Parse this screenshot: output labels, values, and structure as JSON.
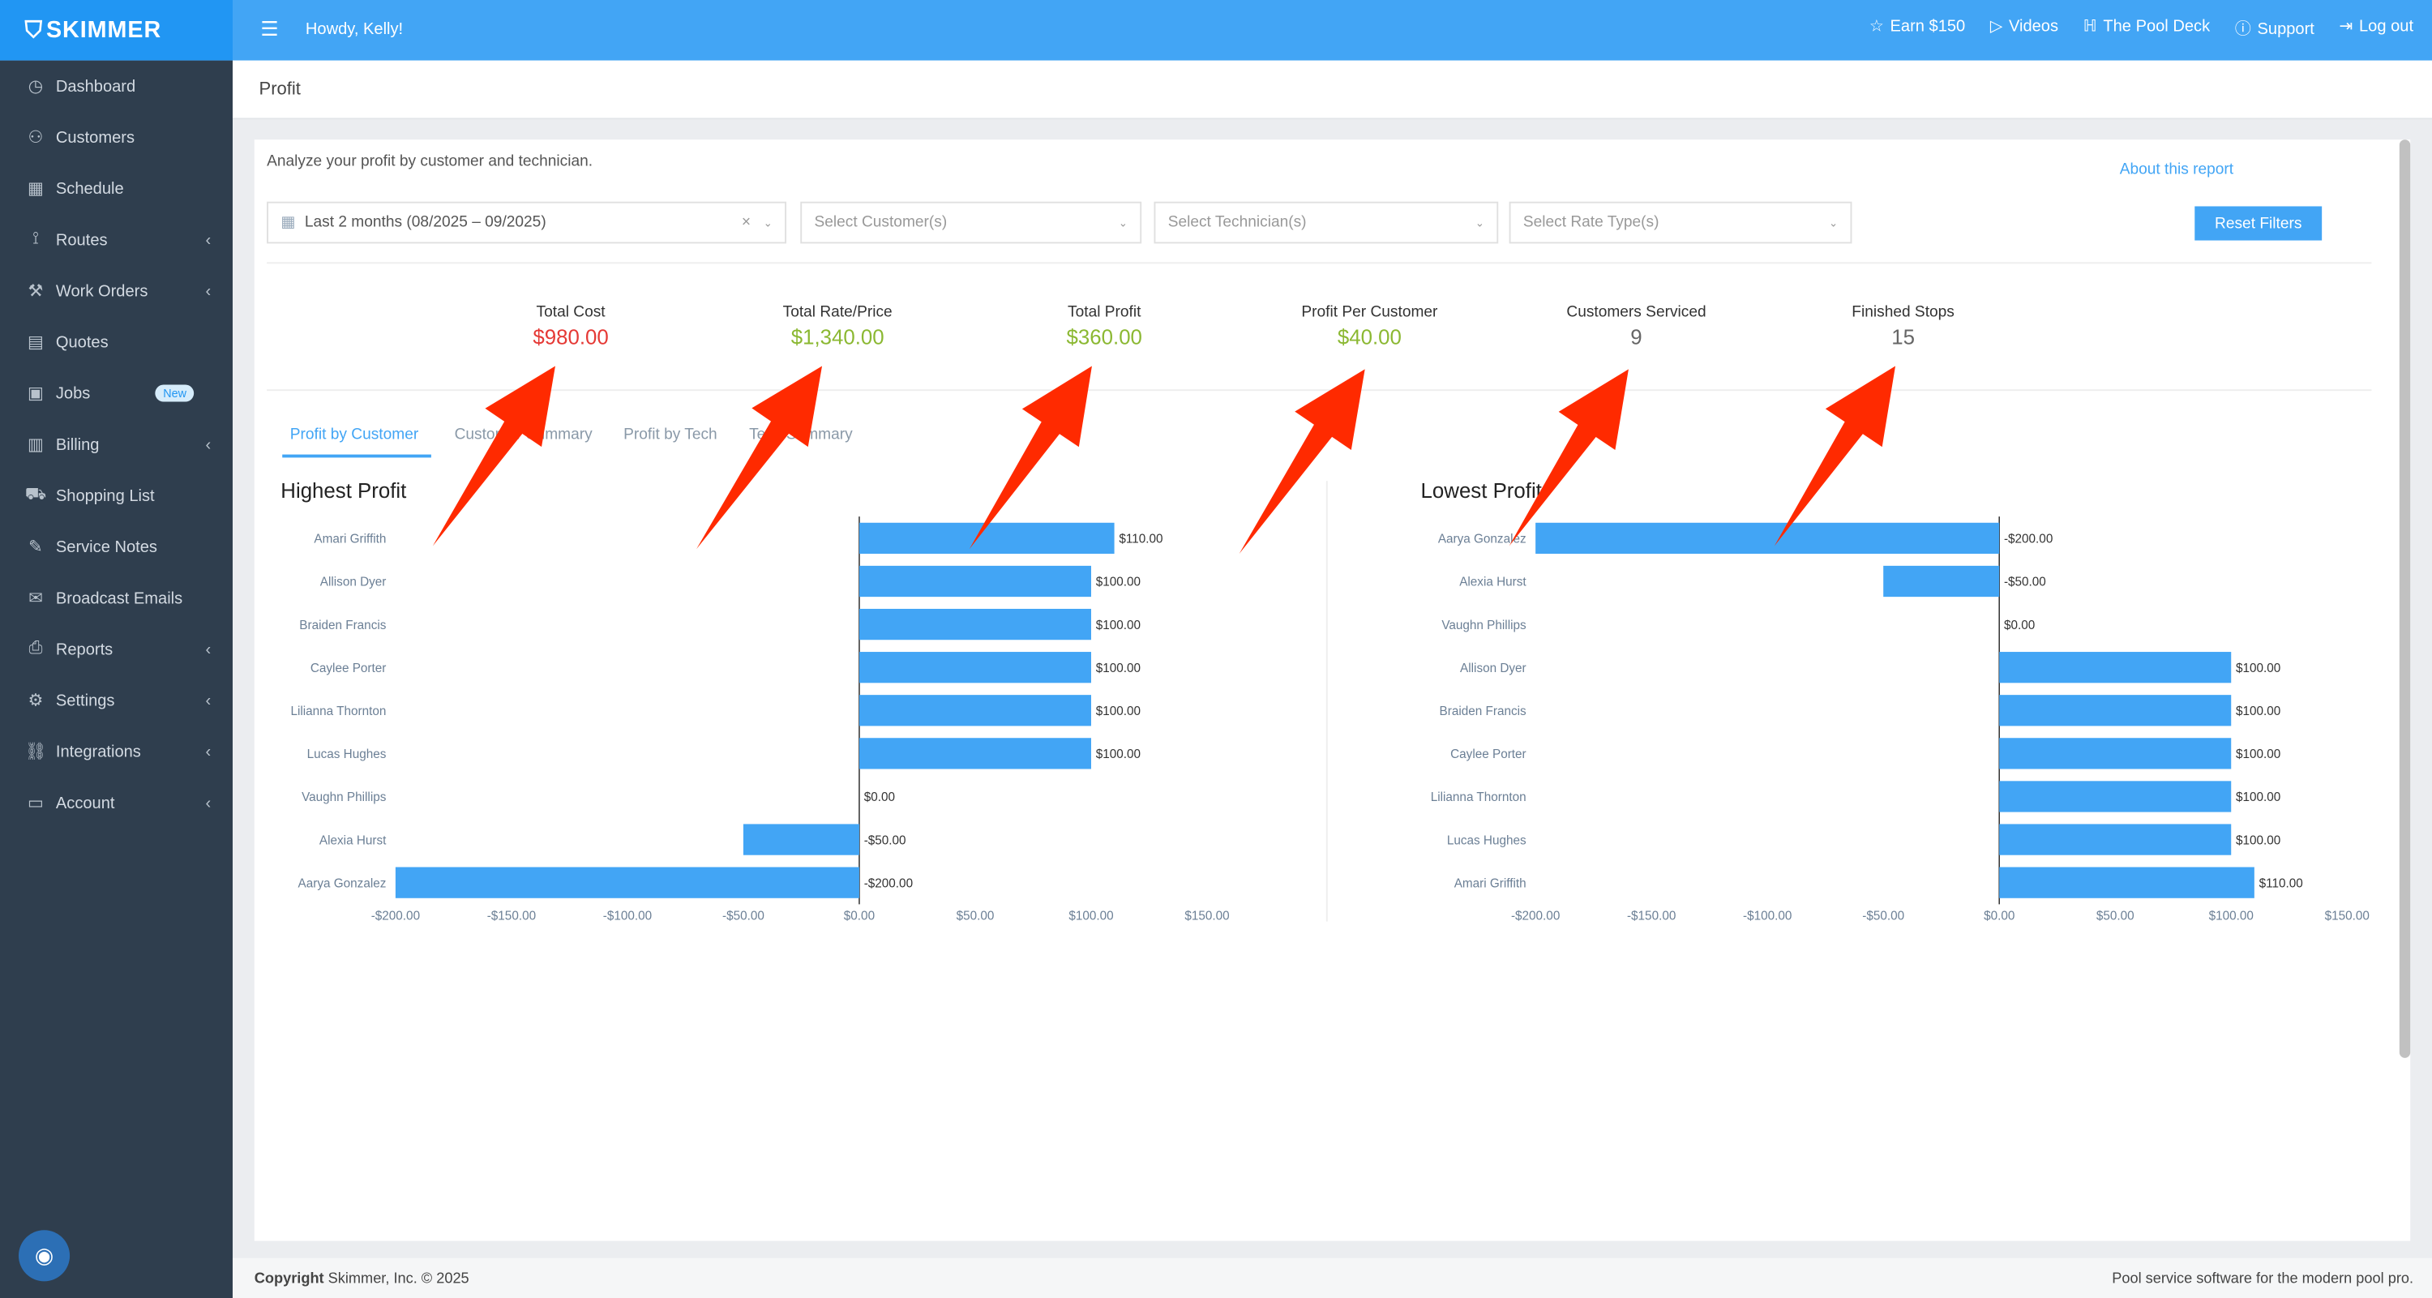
{
  "app": {
    "logo": "SKIMMER",
    "greeting": "Howdy, Kelly!",
    "menu_icon": "hamburger-icon"
  },
  "topnav": [
    {
      "label": "Earn $150",
      "icon": "star-icon"
    },
    {
      "label": "Videos",
      "icon": "play-icon"
    },
    {
      "label": "The Pool Deck",
      "icon": "pool-ladder-icon"
    },
    {
      "label": "Support",
      "icon": "question-icon"
    },
    {
      "label": "Log out",
      "icon": "logout-icon"
    }
  ],
  "sidebar": {
    "items": [
      {
        "label": "Dashboard",
        "icon": "gauge-icon"
      },
      {
        "label": "Customers",
        "icon": "users-icon"
      },
      {
        "label": "Schedule",
        "icon": "calendar-icon"
      },
      {
        "label": "Routes",
        "icon": "route-icon",
        "chevron": true
      },
      {
        "label": "Work Orders",
        "icon": "wrench-icon",
        "chevron": true
      },
      {
        "label": "Quotes",
        "icon": "quote-icon"
      },
      {
        "label": "Jobs",
        "icon": "briefcase-icon",
        "badge": "New"
      },
      {
        "label": "Billing",
        "icon": "invoice-icon",
        "chevron": true
      },
      {
        "label": "Shopping List",
        "icon": "cart-icon"
      },
      {
        "label": "Service Notes",
        "icon": "note-icon"
      },
      {
        "label": "Broadcast Emails",
        "icon": "mail-icon"
      },
      {
        "label": "Reports",
        "icon": "printer-icon",
        "chevron": true
      },
      {
        "label": "Settings",
        "icon": "gear-icon",
        "chevron": true
      },
      {
        "label": "Integrations",
        "icon": "link-icon",
        "chevron": true
      },
      {
        "label": "Account",
        "icon": "card-icon",
        "chevron": true
      }
    ]
  },
  "page": {
    "title": "Profit",
    "description": "Analyze your profit by customer and technician.",
    "about_link": "About this report",
    "reset_label": "Reset Filters"
  },
  "filters": {
    "date": "Last 2 months (08/2025 – 09/2025)",
    "customer_placeholder": "Select Customer(s)",
    "technician_placeholder": "Select Technician(s)",
    "rate_type_placeholder": "Select Rate Type(s)"
  },
  "stats": [
    {
      "label": "Total Cost",
      "value": "$980.00",
      "color": "#e53935"
    },
    {
      "label": "Total Rate/Price",
      "value": "$1,340.00",
      "color": "#8bb832"
    },
    {
      "label": "Total Profit",
      "value": "$360.00",
      "color": "#8bb832"
    },
    {
      "label": "Profit Per Customer",
      "value": "$40.00",
      "color": "#8bb832"
    },
    {
      "label": "Customers Serviced",
      "value": "9",
      "color": "#666666"
    },
    {
      "label": "Finished Stops",
      "value": "15",
      "color": "#666666"
    }
  ],
  "tabs": [
    "Profit by Customer",
    "Customer Summary",
    "Profit by Tech",
    "Tech Summary"
  ],
  "active_tab": 0,
  "chart_data": [
    {
      "type": "bar",
      "orientation": "horizontal",
      "title": "Highest Profit",
      "categories": [
        "Amari Griffith",
        "Allison Dyer",
        "Braiden Francis",
        "Caylee Porter",
        "Lilianna Thornton",
        "Lucas Hughes",
        "Vaughn Phillips",
        "Alexia Hurst",
        "Aarya Gonzalez"
      ],
      "values": [
        110,
        100,
        100,
        100,
        100,
        100,
        0,
        -50,
        -200
      ],
      "data_labels": [
        "$110.00",
        "$100.00",
        "$100.00",
        "$100.00",
        "$100.00",
        "$100.00",
        "$0.00",
        "-$50.00",
        "-$200.00"
      ],
      "xlim": [
        -200,
        150
      ],
      "xticks": [
        "-$200.00",
        "-$150.00",
        "-$100.00",
        "-$50.00",
        "$0.00",
        "$50.00",
        "$100.00",
        "$150.00"
      ],
      "color": "#42a5f5"
    },
    {
      "type": "bar",
      "orientation": "horizontal",
      "title": "Lowest Profit",
      "categories": [
        "Aarya Gonzalez",
        "Alexia Hurst",
        "Vaughn Phillips",
        "Allison Dyer",
        "Braiden Francis",
        "Caylee Porter",
        "Lilianna Thornton",
        "Lucas Hughes",
        "Amari Griffith"
      ],
      "values": [
        -200,
        -50,
        0,
        100,
        100,
        100,
        100,
        100,
        110
      ],
      "data_labels": [
        "-$200.00",
        "-$50.00",
        "$0.00",
        "$100.00",
        "$100.00",
        "$100.00",
        "$100.00",
        "$100.00",
        "$110.00"
      ],
      "xlim": [
        -200,
        150
      ],
      "xticks": [
        "-$200.00",
        "-$150.00",
        "-$100.00",
        "-$50.00",
        "$0.00",
        "$50.00",
        "$100.00",
        "$150.00"
      ],
      "color": "#42a5f5"
    }
  ],
  "footer": {
    "copyright_label": "Copyright",
    "copyright": "Skimmer, Inc. © 2025",
    "tagline": "Pool service software for the modern pool pro."
  },
  "annotation_color": "#ff2a00"
}
